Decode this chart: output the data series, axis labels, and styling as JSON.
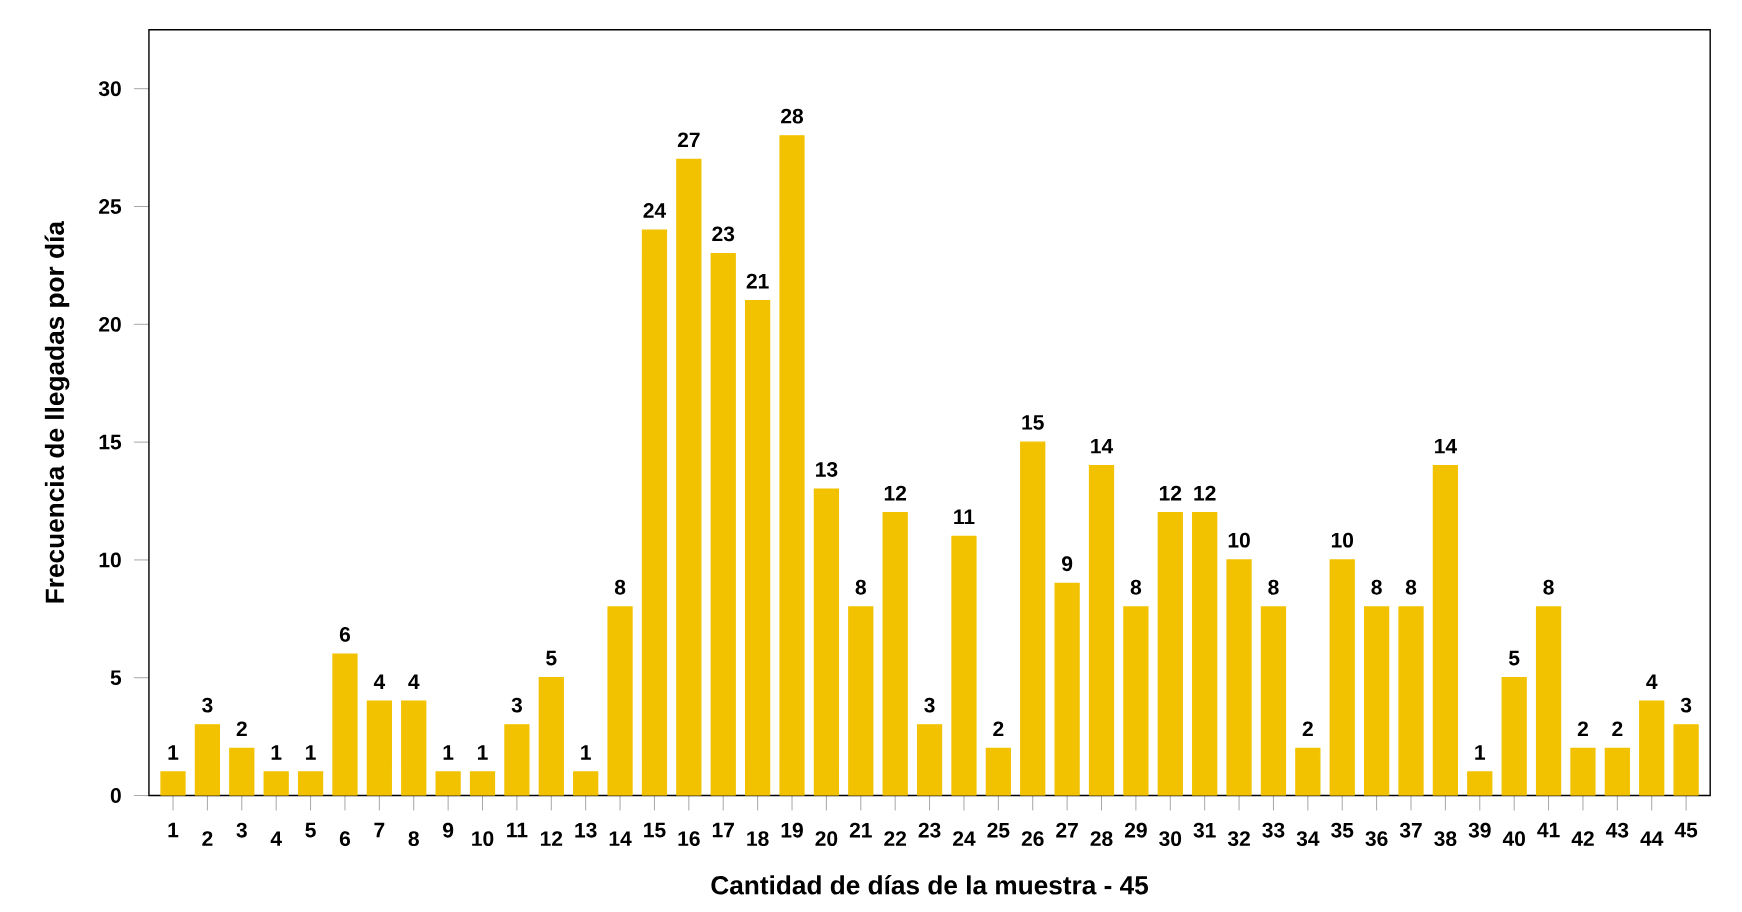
{
  "chart_data": {
    "type": "bar",
    "xlabel": "Cantidad de días  de la muestra - 45",
    "ylabel": "Frecuencia de llegadas por día",
    "categories": [
      "1",
      "2",
      "3",
      "4",
      "5",
      "6",
      "7",
      "8",
      "9",
      "10",
      "11",
      "12",
      "13",
      "14",
      "15",
      "16",
      "17",
      "18",
      "19",
      "20",
      "21",
      "22",
      "23",
      "24",
      "25",
      "26",
      "27",
      "28",
      "29",
      "30",
      "31",
      "32",
      "33",
      "34",
      "35",
      "36",
      "37",
      "38",
      "39",
      "40",
      "41",
      "42",
      "43",
      "44",
      "45"
    ],
    "values": [
      1,
      3,
      2,
      1,
      1,
      6,
      4,
      4,
      1,
      1,
      3,
      5,
      1,
      8,
      24,
      27,
      23,
      21,
      28,
      13,
      8,
      12,
      3,
      11,
      2,
      15,
      9,
      14,
      8,
      12,
      12,
      10,
      8,
      2,
      10,
      8,
      8,
      14,
      1,
      5,
      8,
      2,
      2,
      4,
      3
    ],
    "color": "#f2c200",
    "ylim": [
      0,
      32.5
    ],
    "yticks": [
      0,
      5,
      10,
      15,
      20,
      25,
      30
    ],
    "data_labels": true,
    "grid": false
  }
}
